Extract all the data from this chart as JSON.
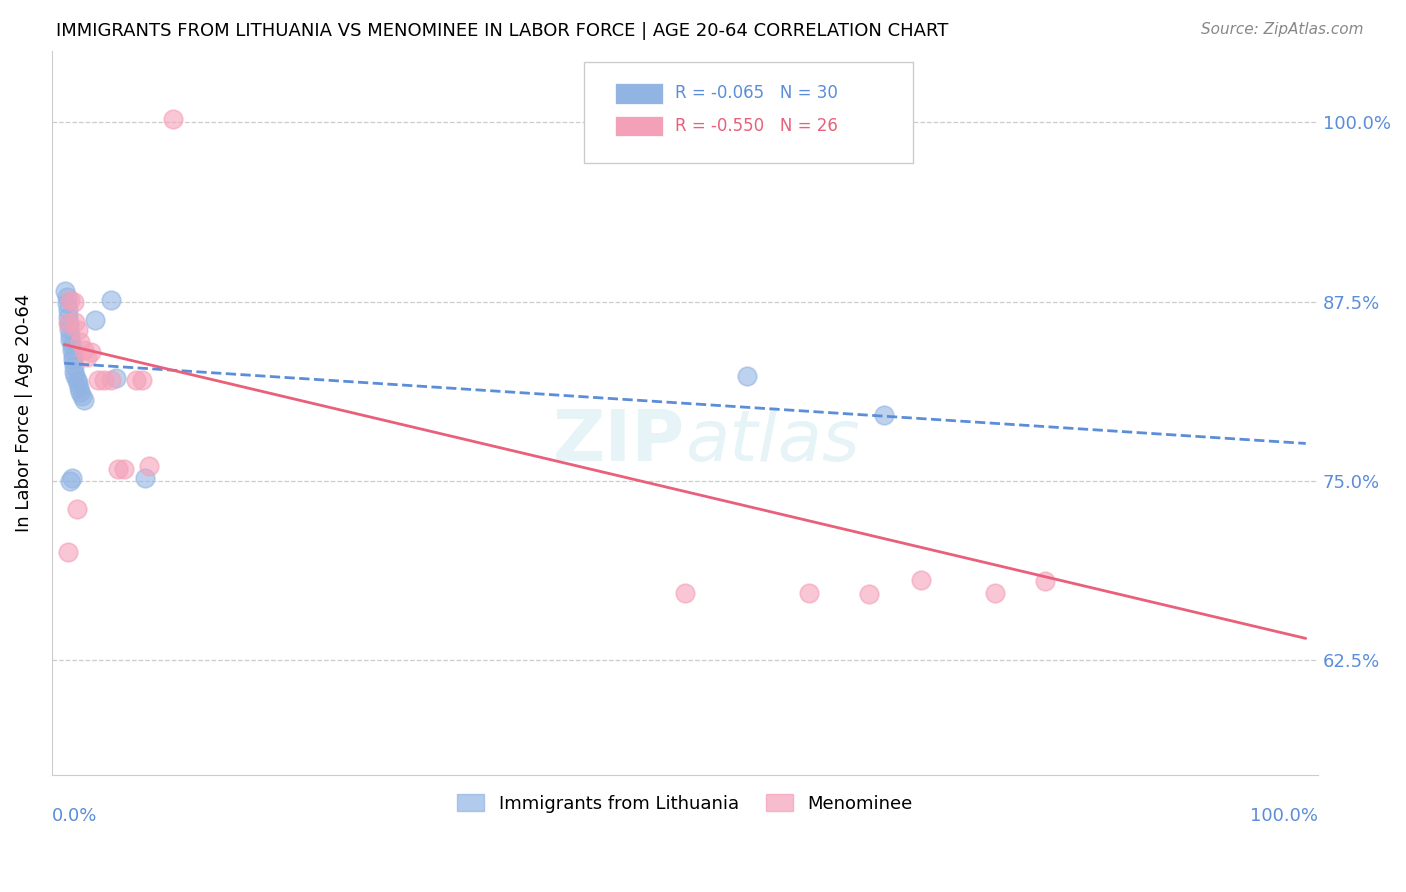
{
  "title": "IMMIGRANTS FROM LITHUANIA VS MENOMINEE IN LABOR FORCE | AGE 20-64 CORRELATION CHART",
  "source": "Source: ZipAtlas.com",
  "ylabel": "In Labor Force | Age 20-64",
  "ytick_labels": [
    "100.0%",
    "87.5%",
    "75.0%",
    "62.5%"
  ],
  "ytick_values": [
    1.0,
    0.875,
    0.75,
    0.625
  ],
  "xlim": [
    0.0,
    1.0
  ],
  "ylim": [
    0.545,
    1.05
  ],
  "legend_r1": "-0.065",
  "legend_n1": "30",
  "legend_r2": "-0.550",
  "legend_n2": "26",
  "color_blue": "#92B4E3",
  "color_pink": "#F4A0B8",
  "color_blue_line": "#5B8DD9",
  "color_pink_line": "#E8607A",
  "watermark": "ZIPatlas",
  "blue_points_x": [
    0.001,
    0.002,
    0.002,
    0.003,
    0.003,
    0.004,
    0.004,
    0.005,
    0.005,
    0.006,
    0.006,
    0.007,
    0.007,
    0.008,
    0.008,
    0.009,
    0.01,
    0.011,
    0.012,
    0.013,
    0.014,
    0.016,
    0.025,
    0.038,
    0.042,
    0.005,
    0.006,
    0.55,
    0.66,
    0.065
  ],
  "blue_points_y": [
    0.882,
    0.878,
    0.874,
    0.869,
    0.864,
    0.86,
    0.856,
    0.852,
    0.848,
    0.845,
    0.841,
    0.837,
    0.834,
    0.83,
    0.826,
    0.823,
    0.82,
    0.818,
    0.815,
    0.812,
    0.809,
    0.806,
    0.862,
    0.876,
    0.822,
    0.75,
    0.752,
    0.823,
    0.796,
    0.752
  ],
  "pink_points_x": [
    0.003,
    0.005,
    0.008,
    0.009,
    0.011,
    0.013,
    0.016,
    0.018,
    0.022,
    0.027,
    0.032,
    0.038,
    0.043,
    0.048,
    0.058,
    0.063,
    0.068,
    0.088,
    0.5,
    0.6,
    0.648,
    0.69,
    0.75,
    0.79,
    0.003,
    0.01
  ],
  "pink_points_y": [
    0.86,
    0.876,
    0.875,
    0.861,
    0.855,
    0.847,
    0.841,
    0.836,
    0.84,
    0.82,
    0.82,
    0.82,
    0.758,
    0.758,
    0.82,
    0.82,
    0.76,
    1.002,
    0.672,
    0.672,
    0.671,
    0.681,
    0.672,
    0.68,
    0.7,
    0.73
  ],
  "blue_line_x": [
    0.0,
    1.0
  ],
  "blue_line_y": [
    0.832,
    0.776
  ],
  "pink_line_x": [
    0.0,
    1.0
  ],
  "pink_line_y": [
    0.845,
    0.64
  ]
}
